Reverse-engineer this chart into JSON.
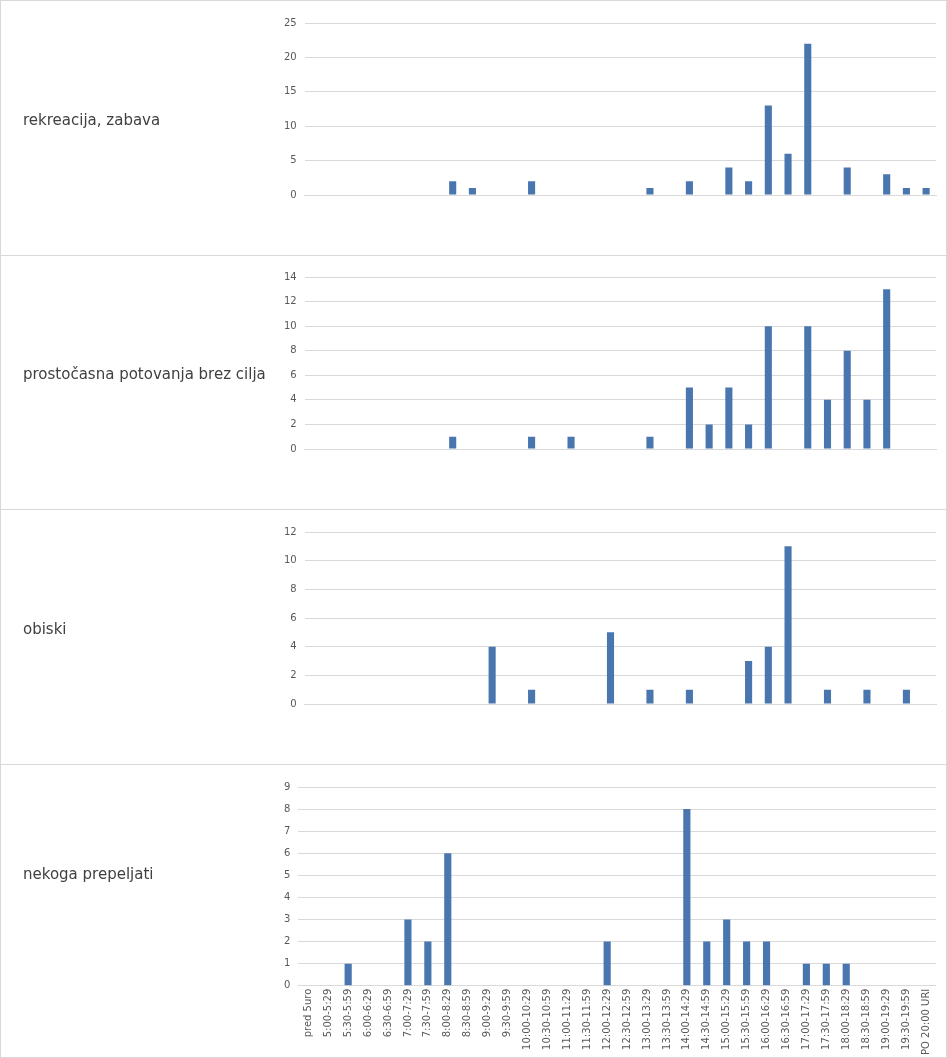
{
  "chart_data": [
    {
      "type": "bar",
      "ylabel": "rekreacija, zabava",
      "categories": [
        null,
        null,
        null,
        null,
        null,
        null,
        null,
        null,
        null,
        null,
        null,
        null,
        null,
        null,
        null,
        null,
        null,
        null,
        null,
        null,
        null,
        null,
        null,
        null,
        null,
        null,
        null,
        null,
        null,
        null,
        null,
        null
      ],
      "values": [
        0,
        0,
        0,
        0,
        0,
        0,
        0,
        2,
        1,
        0,
        0,
        2,
        0,
        0,
        0,
        0,
        0,
        1,
        0,
        2,
        0,
        4,
        2,
        13,
        6,
        22,
        0,
        4,
        0,
        3,
        1,
        1
      ],
      "color": "#4a76b0",
      "ylim": [
        0,
        25
      ],
      "yticks": [
        0,
        5,
        10,
        15,
        20,
        25
      ],
      "grid": "y",
      "tick_labels": "y"
    },
    {
      "type": "bar",
      "ylabel": "prostočasna potovanja brez cilja",
      "categories": [
        null,
        null,
        null,
        null,
        null,
        null,
        null,
        null,
        null,
        null,
        null,
        null,
        null,
        null,
        null,
        null,
        null,
        null,
        null,
        null,
        null,
        null,
        null,
        null,
        null,
        null,
        null,
        null,
        null,
        null,
        null,
        null
      ],
      "values": [
        0,
        0,
        0,
        0,
        0,
        0,
        0,
        1,
        0,
        0,
        0,
        1,
        0,
        1,
        0,
        0,
        0,
        1,
        0,
        5,
        2,
        5,
        2,
        10,
        0,
        10,
        4,
        8,
        4,
        13,
        0,
        0
      ],
      "color": "#4a76b0",
      "ylim": [
        0,
        14
      ],
      "yticks": [
        0,
        2,
        4,
        6,
        8,
        10,
        12,
        14
      ],
      "grid": "y",
      "tick_labels": "y"
    },
    {
      "type": "bar",
      "ylabel": "obiski",
      "categories": [
        null,
        null,
        null,
        null,
        null,
        null,
        null,
        null,
        null,
        null,
        null,
        null,
        null,
        null,
        null,
        null,
        null,
        null,
        null,
        null,
        null,
        null,
        null,
        null,
        null,
        null,
        null,
        null,
        null,
        null,
        null,
        null
      ],
      "values": [
        0,
        0,
        0,
        0,
        0,
        0,
        0,
        0,
        0,
        4,
        0,
        1,
        0,
        0,
        0,
        5,
        0,
        1,
        0,
        1,
        0,
        0,
        3,
        4,
        11,
        0,
        1,
        0,
        1,
        0,
        1,
        0
      ],
      "color": "#4a76b0",
      "ylim": [
        0,
        12
      ],
      "yticks": [
        0,
        2,
        4,
        6,
        8,
        10,
        12
      ],
      "grid": "y",
      "tick_labels": "y"
    },
    {
      "type": "bar",
      "ylabel": "nekoga prepeljati",
      "categories": [
        "pred 5uro",
        "5:00-5:29",
        "5:30-5:59",
        "6:00-6:29",
        "6:30-6:59",
        "7:00-7:29",
        "7:30-7:59",
        "8:00-8:29",
        "8:30-8:59",
        "9:00-9:29",
        "9:30-9:59",
        "10:00-10:29",
        "10:30-10:59",
        "11:00-11:29",
        "11:30-11:59",
        "12:00-12:29",
        "12:30-12:59",
        "13:00-13:29",
        "13:30-13:59",
        "14:00-14:29",
        "14:30-14:59",
        "15:00-15:29",
        "15:30-15:59",
        "16:00-16:29",
        "16:30-16:59",
        "17:00-17:29",
        "17:30-17:59",
        "18:00-18:29",
        "18:30-18:59",
        "19:00-19:29",
        "19:30-19:59",
        "PO 20:00 URI"
      ],
      "values": [
        0,
        0,
        1,
        0,
        0,
        3,
        2,
        6,
        0,
        0,
        0,
        0,
        0,
        0,
        0,
        2,
        0,
        0,
        0,
        8,
        2,
        3,
        2,
        2,
        0,
        1,
        1,
        1,
        0,
        0,
        0,
        0
      ],
      "color": "#4a76b0",
      "ylim": [
        0,
        9
      ],
      "yticks": [
        0,
        1,
        2,
        3,
        4,
        5,
        6,
        7,
        8,
        9
      ],
      "grid": "y"
    }
  ]
}
